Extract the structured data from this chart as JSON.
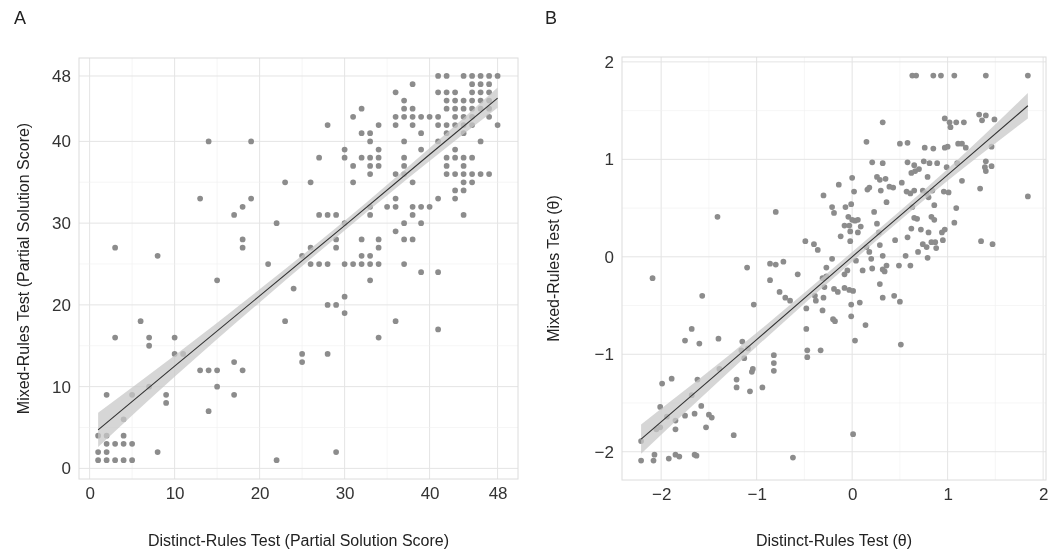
{
  "chart_data": [
    {
      "type": "scatter",
      "title": "A",
      "xlabel": "Distinct-Rules Test (Partial Solution Score)",
      "ylabel": "Mixed-Rules Test (Partial Solution Score)",
      "xlim": [
        -1.25,
        50.4
      ],
      "ylim": [
        -1.3,
        50.2
      ],
      "xticks": [
        0,
        10,
        20,
        30,
        40,
        48
      ],
      "yticks": [
        0,
        10,
        20,
        30,
        40,
        48
      ],
      "grid": true,
      "series": [
        {
          "marker": "circle",
          "color": "#8c8c8c",
          "x": [
            41,
            42,
            44,
            45,
            46,
            47,
            48,
            45,
            46,
            47,
            38,
            36,
            41,
            42,
            43,
            45,
            46,
            47,
            37,
            42,
            43,
            44,
            45,
            46,
            47,
            32,
            37,
            38,
            42,
            43,
            44,
            45,
            46,
            47,
            31,
            36,
            37,
            38,
            39,
            40,
            41,
            43,
            44,
            45,
            47,
            28,
            34,
            36,
            38,
            41,
            42,
            43,
            44,
            45,
            48,
            32,
            33,
            39,
            42,
            44,
            14,
            19,
            33,
            37,
            41,
            46,
            30,
            34,
            39,
            43,
            27,
            30,
            32,
            33,
            34,
            37,
            42,
            43,
            44,
            45,
            31,
            33,
            34,
            37,
            42,
            44,
            33,
            36,
            37,
            42,
            43,
            44,
            45,
            46,
            47,
            23,
            26,
            31,
            38,
            44,
            45,
            43,
            44,
            13,
            19,
            36,
            41,
            43,
            18,
            33,
            35,
            36,
            38,
            39,
            40,
            17,
            27,
            28,
            29,
            33,
            38,
            44,
            22,
            30,
            37,
            39,
            36,
            18,
            29,
            32,
            34,
            37,
            38,
            3,
            18,
            26,
            29,
            34,
            8,
            25,
            32,
            33,
            21,
            26,
            27,
            28,
            30,
            31,
            32,
            33,
            34,
            37,
            39,
            41,
            15,
            33,
            24,
            30,
            28,
            29,
            30,
            6,
            23,
            36,
            41,
            3,
            7,
            10,
            34,
            7,
            10,
            11,
            25,
            28,
            17,
            25,
            13,
            14,
            15,
            18,
            7,
            15,
            2,
            5,
            9,
            17,
            9,
            14,
            4,
            1,
            2,
            4,
            2,
            3,
            4,
            5,
            1,
            2,
            8,
            29,
            1,
            2,
            3,
            4,
            5,
            22
          ],
          "values": [
            48,
            48,
            48,
            48,
            48,
            48,
            48,
            47,
            47,
            47,
            47,
            46,
            46,
            46,
            46,
            46,
            46,
            46,
            45,
            45,
            45,
            45,
            45,
            45,
            45,
            44,
            44,
            44,
            44,
            44,
            44,
            44,
            44,
            44,
            43,
            43,
            43,
            43,
            43,
            43,
            43,
            43,
            43,
            43,
            43,
            42,
            42,
            42,
            42,
            42,
            42,
            42,
            42,
            42,
            42,
            41,
            41,
            41,
            41,
            41,
            40,
            40,
            40,
            40,
            40,
            40,
            39,
            39,
            39,
            39,
            38,
            38,
            38,
            38,
            38,
            38,
            38,
            38,
            38,
            38,
            37,
            37,
            37,
            37,
            37,
            37,
            36,
            36,
            36,
            36,
            36,
            36,
            36,
            36,
            36,
            35,
            35,
            35,
            35,
            35,
            35,
            34,
            34,
            33,
            33,
            33,
            33,
            33,
            32,
            32,
            32,
            32,
            32,
            32,
            32,
            31,
            31,
            31,
            31,
            31,
            31,
            31,
            30,
            30,
            30,
            30,
            29,
            28,
            28,
            28,
            28,
            28,
            28,
            27,
            27,
            27,
            27,
            27,
            26,
            26,
            26,
            26,
            25,
            25,
            25,
            25,
            25,
            25,
            25,
            25,
            25,
            25,
            24,
            24,
            23,
            23,
            22,
            21,
            20,
            20,
            19,
            18,
            18,
            18,
            17,
            16,
            16,
            16,
            16,
            15,
            14,
            14,
            14,
            14,
            13,
            13,
            12,
            12,
            12,
            12,
            10,
            10,
            9,
            9,
            9,
            9,
            8,
            7,
            6,
            4,
            4,
            4,
            3,
            3,
            3,
            3,
            2,
            2,
            2,
            2,
            1,
            1,
            1,
            1,
            1,
            1
          ]
        },
        {
          "type": "line",
          "marker": "none",
          "color": "#333333",
          "x": [
            1,
            10,
            20,
            30,
            40,
            48
          ],
          "values": [
            4.7,
            12.5,
            21.1,
            29.7,
            38.4,
            45.3
          ],
          "lower": [
            2.6,
            11.2,
            20.3,
            29.1,
            37.6,
            44.1
          ],
          "upper": [
            6.8,
            13.8,
            21.9,
            30.3,
            39.2,
            46.6
          ]
        }
      ]
    },
    {
      "type": "scatter",
      "title": "B",
      "xlabel": "Distinct-Rules Test (θ)",
      "ylabel": "Mixed-Rules Test (θ)",
      "xlim": [
        -2.41,
        2.03
      ],
      "ylim": [
        -2.29,
        2.05
      ],
      "xticks": [
        {
          "value": -2,
          "label": "−2"
        },
        {
          "value": -1,
          "label": "−1"
        },
        0,
        1,
        2
      ],
      "yticks": [
        {
          "value": -2,
          "label": "−2"
        },
        {
          "value": -1,
          "label": "−1"
        },
        0,
        1,
        2
      ],
      "grid": true,
      "series": [
        {
          "marker": "circle",
          "color": "#8c8c8c",
          "x": [
            0.63,
            0.67,
            0.85,
            0.93,
            1.07,
            1.4,
            1.84,
            0.97,
            1.02,
            1.03,
            1.09,
            1.17,
            0.32,
            1.33,
            1.36,
            1.4,
            1.49,
            0.15,
            0.5,
            0.58,
            0.76,
            0.85,
            0.97,
            1.0,
            1.11,
            1.15,
            1.19,
            1.46,
            0.21,
            0.32,
            0.58,
            0.65,
            0.75,
            0.81,
            0.89,
            0.99,
            1.1,
            1.4,
            1.46,
            1.39,
            1.4,
            0.0,
            0.26,
            0.29,
            0.35,
            0.62,
            0.66,
            0.7,
            0.79,
            1.15,
            -0.14,
            0.52,
            0.39,
            0.43,
            1.34,
            -0.3,
            0.02,
            0.16,
            0.18,
            0.3,
            0.57,
            0.61,
            0.65,
            0.74,
            0.78,
            0.84,
            0.96,
            1.01,
            1.84,
            0.36,
            -0.21,
            -0.07,
            -0.01,
            0.63,
            0.86,
            1.09,
            0.8,
            -1.41,
            -0.8,
            -0.19,
            0.23,
            -0.04,
            0,
            0.03,
            0.06,
            -0.08,
            -0.03,
            0.09,
            0.65,
            0.68,
            0.83,
            0.86,
            1.07,
            0.26,
            -0.12,
            -0.02,
            0.06,
            0.28,
            0.62,
            0.72,
            0.8,
            0.94,
            0.97,
            0.95,
            0.45,
            0.58,
            0.87,
            1.35,
            1.47,
            -0.02,
            -0.49,
            -0.4,
            -0.36,
            0.15,
            0.18,
            0.29,
            0.74,
            0.78,
            0.83,
            0.88,
            0.69,
            0.32,
            0.56,
            0.79,
            0.2,
            -0.21,
            -0.86,
            -0.8,
            -0.72,
            -1.1,
            0.04,
            0.61,
            0.49,
            0.36,
            0.21,
            -0.27,
            -0.05,
            0.11,
            0.32,
            0.34,
            -0.57,
            -0.27,
            -0.08,
            -0.86,
            -0.31,
            -0.29,
            -0.19,
            -0.15,
            -0.08,
            -0.03,
            0.01,
            0.29,
            -0.76,
            -0.7,
            -0.65,
            -0.39,
            -0.38,
            -0.3,
            0.32,
            0.44,
            0.5,
            0.08,
            -0.01,
            -1.03,
            -1.57,
            -0.48,
            -0.31,
            -0.2,
            -0.18,
            -0.01,
            0.14,
            -0.48,
            -1.68,
            -1.75,
            -1.6,
            -1.4,
            -1.15,
            -1.16,
            -1.09,
            -1.13,
            -0.82,
            -0.82,
            -0.82,
            -0.47,
            -0.47,
            -0.33,
            0.03,
            0.51,
            -1.04,
            -1.05,
            -1.39,
            -1.89,
            -1.99,
            -1.62,
            -1.21,
            -1.21,
            -1.07,
            -0.94,
            -1.68,
            -2.01,
            -1.58,
            -1.94,
            -1.85,
            -1.75,
            -1.65,
            -1.5,
            -1.47,
            -1.53,
            -1.85,
            -2.05,
            -2.01,
            -1.24,
            0.01,
            -2.09,
            -2.21,
            -2.21,
            -2.08,
            -2.07,
            -1.92,
            -1.85,
            -1.81,
            -1.65,
            -1.63,
            -0.62
          ],
          "values": [
            1.86,
            1.86,
            1.86,
            1.86,
            1.86,
            1.86,
            1.86,
            1.42,
            1.38,
            1.33,
            1.38,
            1.38,
            1.38,
            1.46,
            1.4,
            1.45,
            1.41,
            1.18,
            1.16,
            1.17,
            1.12,
            1.11,
            1.12,
            1.13,
            1.16,
            1.16,
            1.12,
            1.13,
            0.97,
            0.96,
            0.97,
            0.94,
            0.98,
            0.96,
            0.96,
            0.92,
            0.96,
            0.98,
            0.93,
            0.92,
            0.88,
            0.81,
            0.82,
            0.79,
            0.8,
            0.86,
            0.88,
            0.9,
            0.82,
            0.78,
            0.74,
            0.76,
            0.72,
            0.71,
            0.7,
            0.63,
            0.67,
            0.69,
            0.71,
            0.68,
            0.67,
            0.65,
            0.68,
            0.68,
            0.65,
            0.68,
            0.67,
            0.66,
            0.62,
            0.56,
            0.51,
            0.51,
            0.54,
            0.51,
            0.53,
            0.5,
            0.61,
            0.41,
            0.46,
            0.45,
            0.46,
            0.41,
            0.38,
            0.37,
            0.38,
            0.32,
            0.32,
            0.31,
            0.4,
            0.39,
            0.41,
            0.38,
            0.35,
            0.34,
            0.21,
            0.26,
            0.25,
            0.25,
            0.29,
            0.28,
            0.25,
            0.25,
            0.28,
            0.17,
            0.17,
            0.2,
            0.15,
            0.16,
            0.13,
            0.16,
            0.16,
            0.13,
            0.07,
            0.1,
            0.05,
            0.12,
            0.13,
            0.1,
            0.15,
            0.09,
            0.05,
            0.01,
            0.01,
            -0.01,
            -0.02,
            -0.02,
            -0.07,
            -0.08,
            -0.05,
            -0.11,
            -0.04,
            -0.09,
            -0.09,
            -0.09,
            -0.12,
            -0.11,
            -0.14,
            -0.14,
            -0.13,
            -0.15,
            -0.18,
            -0.2,
            -0.18,
            -0.24,
            -0.22,
            -0.31,
            -0.33,
            -0.36,
            -0.32,
            -0.34,
            -0.35,
            -0.28,
            -0.36,
            -0.42,
            -0.45,
            -0.4,
            -0.45,
            -0.42,
            -0.42,
            -0.4,
            -0.46,
            -0.47,
            -0.49,
            -0.49,
            -0.4,
            -0.53,
            -0.55,
            -0.64,
            -0.66,
            -0.61,
            -0.7,
            -0.74,
            -0.74,
            -0.86,
            -0.89,
            -0.84,
            -0.87,
            -0.96,
            -0.94,
            -1.04,
            -1.01,
            -1.09,
            -1.17,
            -0.96,
            -1.03,
            -0.96,
            -0.86,
            -0.9,
            -1.15,
            -1.18,
            -1.15,
            -1.25,
            -1.3,
            -1.26,
            -1.26,
            -1.34,
            -1.38,
            -1.34,
            -1.42,
            -1.54,
            -1.53,
            -1.64,
            -1.68,
            -1.63,
            -1.61,
            -1.62,
            -1.65,
            -1.75,
            -1.77,
            -1.77,
            -1.75,
            -1.83,
            -1.82,
            -0.22,
            -1.89,
            -2.09,
            -2.09,
            -2.03,
            -2.07,
            -2.03,
            -2.05,
            -2.03,
            -2.04,
            -2.06
          ]
        },
        {
          "type": "line",
          "marker": "none",
          "color": "#333333",
          "x": [
            -2.21,
            -1,
            0,
            1,
            1.84
          ],
          "values": [
            -1.87,
            -0.85,
            0.0,
            0.84,
            1.55
          ],
          "lower": [
            -2.02,
            -0.92,
            -0.05,
            0.78,
            1.42
          ],
          "upper": [
            -1.72,
            -0.78,
            0.05,
            0.9,
            1.68
          ]
        }
      ]
    }
  ]
}
